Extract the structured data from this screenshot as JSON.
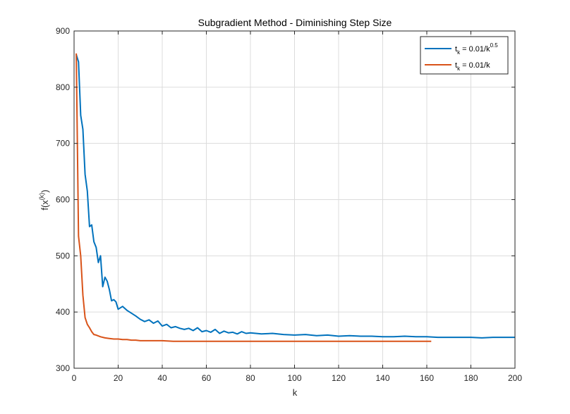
{
  "chart_data": {
    "type": "line",
    "title": "Subgradient Method - Diminishing Step Size",
    "xlabel": "k",
    "ylabel": {
      "base": "f(x",
      "sup": "(k)",
      "close": ")"
    },
    "xlim": [
      0,
      200
    ],
    "ylim": [
      300,
      900
    ],
    "xticks": [
      0,
      20,
      40,
      60,
      80,
      100,
      120,
      140,
      160,
      180,
      200
    ],
    "yticks": [
      300,
      400,
      500,
      600,
      700,
      800,
      900
    ],
    "grid": true,
    "legend_position": "top-right",
    "series": [
      {
        "name": "t_k = 0.01/k^0.5",
        "legend": {
          "pre": "t",
          "sub": "k",
          "mid": " = 0.01/k",
          "sup": "0.5"
        },
        "color": "#0072BD",
        "x": [
          1,
          2,
          3,
          4,
          5,
          6,
          7,
          8,
          9,
          10,
          11,
          12,
          13,
          14,
          15,
          16,
          17,
          18,
          19,
          20,
          22,
          24,
          26,
          28,
          30,
          32,
          34,
          36,
          38,
          40,
          42,
          44,
          46,
          48,
          50,
          52,
          54,
          56,
          58,
          60,
          62,
          64,
          66,
          68,
          70,
          72,
          74,
          76,
          78,
          80,
          85,
          90,
          95,
          100,
          105,
          110,
          115,
          120,
          125,
          130,
          135,
          140,
          145,
          150,
          155,
          160,
          165,
          170,
          175,
          180,
          185,
          190,
          195,
          200
        ],
        "y": [
          858,
          845,
          750,
          725,
          645,
          615,
          552,
          555,
          525,
          515,
          488,
          500,
          445,
          462,
          455,
          440,
          420,
          422,
          418,
          405,
          410,
          403,
          398,
          393,
          387,
          383,
          386,
          380,
          384,
          375,
          378,
          372,
          374,
          371,
          369,
          371,
          367,
          372,
          365,
          367,
          364,
          369,
          362,
          366,
          363,
          364,
          361,
          365,
          362,
          363,
          361,
          362,
          360,
          359,
          360,
          358,
          359,
          357,
          358,
          357,
          357,
          356,
          356,
          357,
          356,
          356,
          355,
          355,
          355,
          355,
          354,
          355,
          355,
          355
        ]
      },
      {
        "name": "t_k = 0.01/k",
        "legend": {
          "pre": "t",
          "sub": "k",
          "mid": " = 0.01/k",
          "sup": ""
        },
        "color": "#D95319",
        "x": [
          1,
          2,
          3,
          4,
          5,
          6,
          7,
          8,
          9,
          10,
          12,
          14,
          16,
          18,
          20,
          22,
          24,
          26,
          28,
          30,
          35,
          40,
          45,
          50,
          60,
          70,
          80,
          90,
          100,
          110,
          120,
          130,
          140,
          150,
          160,
          162
        ],
        "y": [
          860,
          535,
          500,
          430,
          390,
          378,
          372,
          365,
          360,
          359,
          356,
          354,
          353,
          352,
          352,
          351,
          351,
          350,
          350,
          349,
          349,
          349,
          348,
          348,
          348,
          348,
          348,
          348,
          348,
          348,
          348,
          348,
          348,
          348,
          348,
          348
        ]
      }
    ]
  }
}
